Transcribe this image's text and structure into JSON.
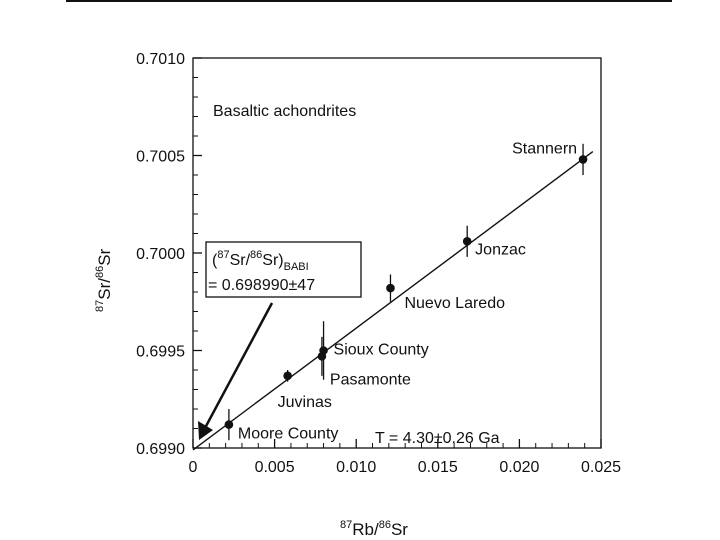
{
  "chart_data": {
    "type": "scatter",
    "title": "",
    "xlabel": {
      "pre": "87",
      "a": "Rb/",
      "mid": "86",
      "b": "Sr"
    },
    "ylabel": {
      "pre": "87",
      "a": "Sr/",
      "mid": "86",
      "b": "Sr"
    },
    "xlim": [
      0,
      0.025
    ],
    "ylim": [
      0.699,
      0.701
    ],
    "x_ticks": [
      "0",
      "0.005",
      "0.010",
      "0.015",
      "0.020",
      "0.025"
    ],
    "x_tick_values": [
      0,
      0.005,
      0.01,
      0.015,
      0.02,
      0.025
    ],
    "y_ticks": [
      "0.6990",
      "0.6995",
      "0.7000",
      "0.7005",
      "0.7010"
    ],
    "y_tick_values": [
      0.699,
      0.6995,
      0.7,
      0.7005,
      0.701
    ],
    "grid": false,
    "panel_label": "Basaltic achondrites",
    "points": [
      {
        "name": "Moore County",
        "x": 0.0022,
        "y": 0.69912,
        "err": 8e-05
      },
      {
        "name": "Juvinas",
        "x": 0.0058,
        "y": 0.69937,
        "err": 3e-05
      },
      {
        "name": "Pasamonte",
        "x": 0.0079,
        "y": 0.69947,
        "err": 0.0001
      },
      {
        "name": "Sioux County",
        "x": 0.008,
        "y": 0.6995,
        "err": 0.00015
      },
      {
        "name": "Nuevo Laredo",
        "x": 0.0121,
        "y": 0.69982,
        "err": 7e-05
      },
      {
        "name": "Jonzac",
        "x": 0.0168,
        "y": 0.70006,
        "err": 8e-05
      },
      {
        "name": "Stannern",
        "x": 0.0239,
        "y": 0.70048,
        "err": 8e-05
      }
    ],
    "fit_line": {
      "x": [
        0,
        0.0245
      ],
      "y": [
        0.69899,
        0.70052
      ]
    },
    "annotations": {
      "intercept_box": {
        "line1_pre": "(",
        "line1_sup1": "87",
        "line1_a": "Sr/",
        "line1_sup2": "86",
        "line1_b": "Sr)",
        "line1_sub": "BABI",
        "line2": "= 0.698990±47"
      },
      "age": "T = 4.30±0.26 Ga"
    }
  }
}
